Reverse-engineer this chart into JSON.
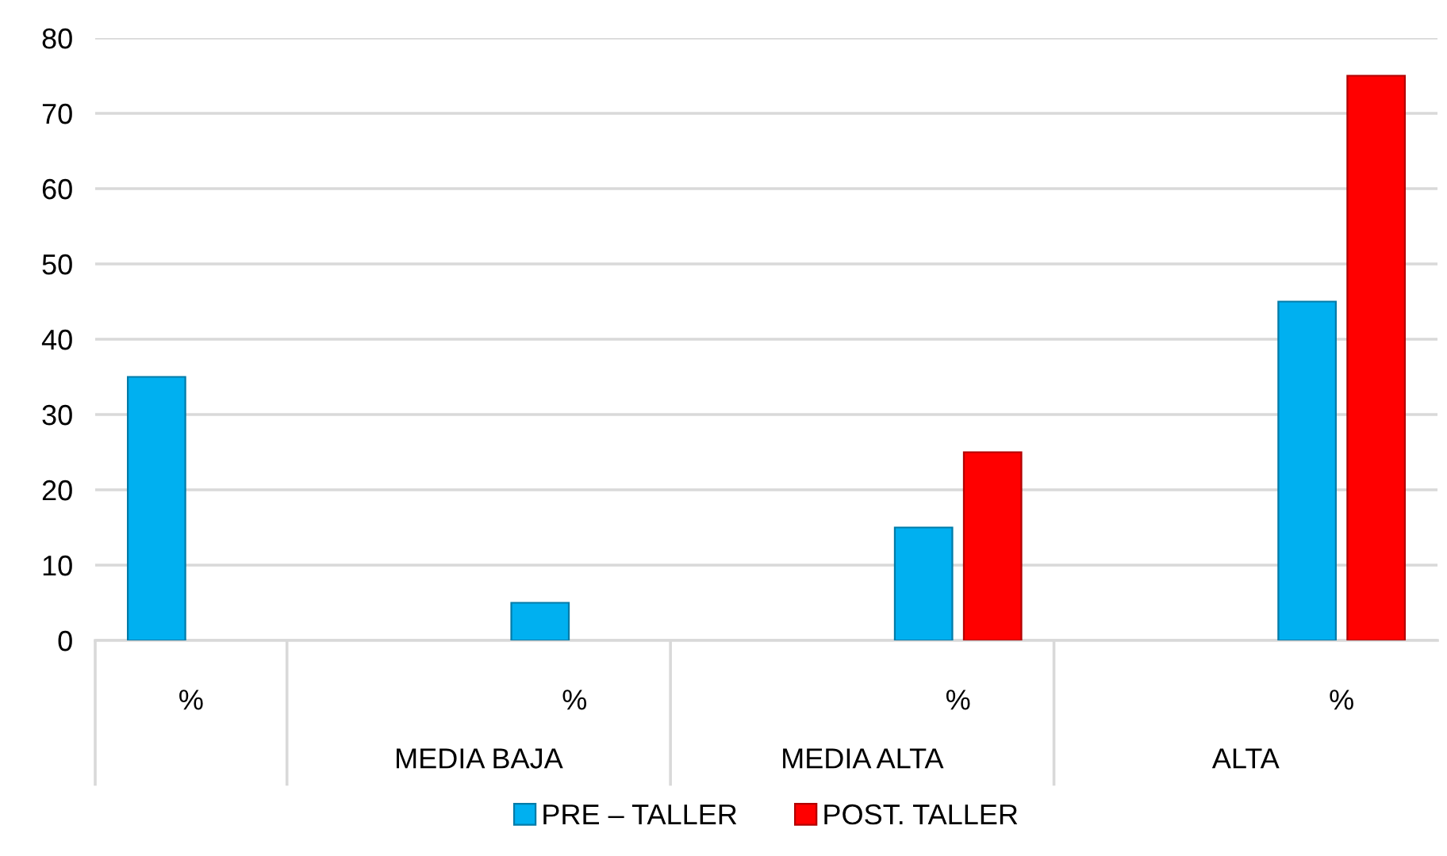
{
  "chart_data": {
    "type": "bar",
    "categories": [
      "%",
      null,
      "%",
      null,
      "%",
      null,
      "%"
    ],
    "series": [
      {
        "name": "PRE – TALLER",
        "color": "#00b0f0",
        "values": [
          35,
          null,
          5,
          null,
          15,
          null,
          45
        ]
      },
      {
        "name": "POST. TALLER",
        "color": "#ff0000",
        "values": [
          null,
          null,
          null,
          null,
          25,
          null,
          75
        ]
      }
    ],
    "annotations": [
      "MEDIA BAJA",
      "MEDIA ALTA",
      "ALTA"
    ],
    "ylim": [
      0,
      80
    ],
    "yticks": [
      0,
      10,
      20,
      30,
      40,
      50,
      60,
      70,
      80
    ],
    "grid": "y",
    "legend": "bottom"
  }
}
